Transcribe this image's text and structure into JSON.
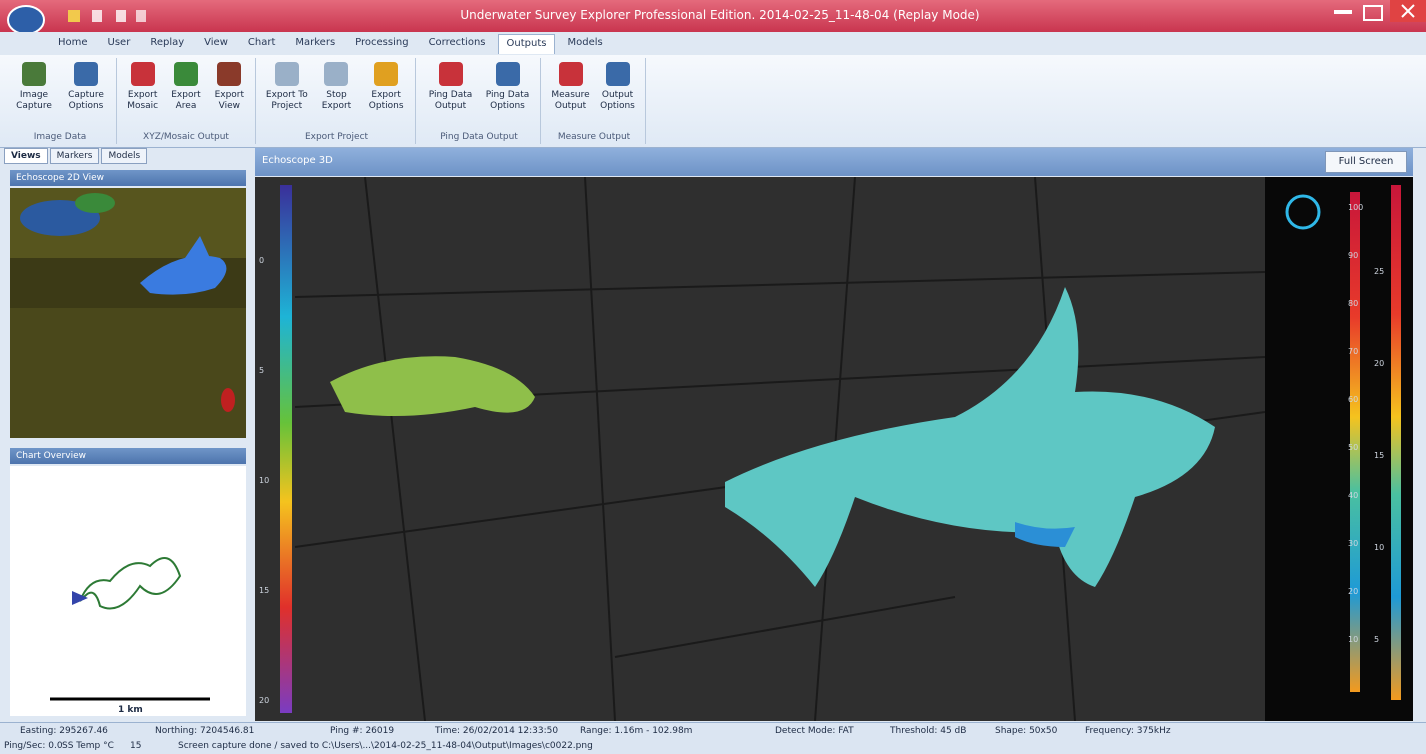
{
  "window": {
    "title": "Underwater Survey Explorer Professional Edition. 2014-02-25_11-48-04 (Replay Mode)"
  },
  "ribbon_tabs": [
    "Home",
    "User",
    "Replay",
    "View",
    "Chart",
    "Markers",
    "Processing",
    "Corrections",
    "Outputs",
    "Models"
  ],
  "ribbon_groups": [
    {
      "label": "Image Data",
      "buttons": [
        "Image Capture",
        "Capture Options"
      ]
    },
    {
      "label": "XYZ/Mosaic Output",
      "buttons": [
        "Export Mosaic",
        "Export Area",
        "Export View"
      ]
    },
    {
      "label": "Export Project",
      "buttons": [
        "Export To Project",
        "Stop Export",
        "Export Options"
      ]
    },
    {
      "label": "Ping Data Output",
      "buttons": [
        "Ping Data Output",
        "Ping Data Options"
      ]
    },
    {
      "label": "Measure Output",
      "buttons": [
        "Measure Output",
        "Output Options"
      ]
    }
  ],
  "left_tabs": [
    "Views",
    "Markers",
    "Models"
  ],
  "panels": {
    "view_title": "Echoscope 2D View",
    "overview_title": "Chart Overview",
    "scale_label": "1 km"
  },
  "main_view": {
    "title": "Echoscope 3D",
    "full_screen": "Full Screen",
    "depth_scale": [
      "0",
      "5",
      "10",
      "15",
      "20"
    ],
    "right_scale_a": [
      "100",
      "90",
      "80",
      "70",
      "60",
      "50",
      "40",
      "30",
      "20",
      "10"
    ],
    "right_scale_b": [
      "25",
      "20",
      "15",
      "10",
      "5"
    ]
  },
  "status_bar": {
    "row1": [
      "Easting: 295267.46",
      "Northing: 7204546.81",
      "Ping #: 26019",
      "Time: 26/02/2014 12:33:50",
      "Range: 1.16m - 102.98m",
      "Detect Mode: FAT",
      "Threshold: 45 dB",
      "Shape: 50x50",
      "Frequency: 375kHz"
    ],
    "row2": [
      "Ping/Sec: 0.0",
      "SS Temp °C",
      "15",
      "Screen capture done / saved to C:\\Users\\...\\2014-02-25_11-48-04\\Output\\Images\\c0022.png"
    ]
  }
}
